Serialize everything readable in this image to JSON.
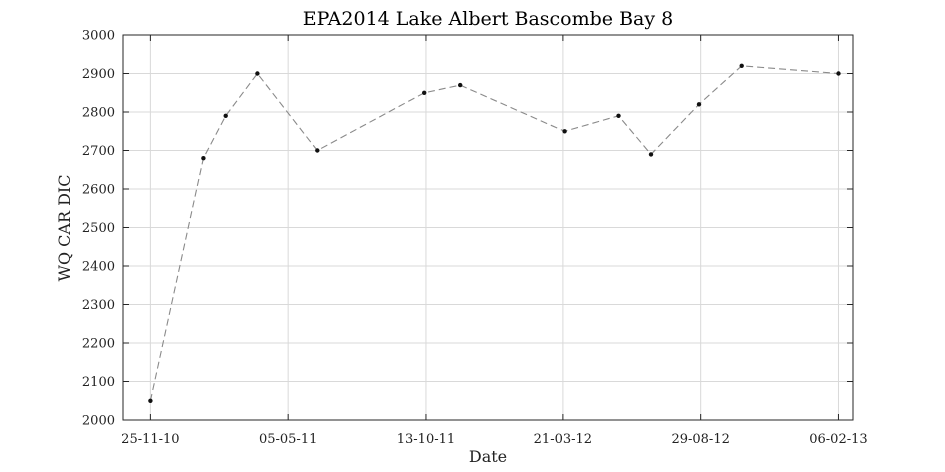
{
  "chart_data": {
    "type": "line",
    "title": "EPA2014 Lake Albert Bascombe Bay 8",
    "xlabel": "Date",
    "ylabel": "WQ CAR DIC",
    "x_tick_labels": [
      "25-11-10",
      "05-05-11",
      "13-10-11",
      "21-03-12",
      "29-08-12",
      "06-02-13"
    ],
    "y_tick_labels": [
      "2000",
      "2100",
      "2200",
      "2300",
      "2400",
      "2500",
      "2600",
      "2700",
      "2800",
      "2900",
      "3000"
    ],
    "ylim": [
      2000,
      3000
    ],
    "xlim": [
      "2010-10-24",
      "2013-02-23"
    ],
    "grid": true,
    "series": [
      {
        "x": [
          "2010-11-25",
          "2011-01-26",
          "2011-02-21",
          "2011-03-30",
          "2011-06-08",
          "2011-10-11",
          "2011-11-22",
          "2012-03-23",
          "2012-05-25",
          "2012-07-02",
          "2012-08-27",
          "2012-10-16",
          "2013-02-06"
        ],
        "y": [
          2050,
          2680,
          2790,
          2900,
          2700,
          2850,
          2870,
          2750,
          2790,
          2690,
          2820,
          2920,
          2900
        ]
      }
    ]
  }
}
